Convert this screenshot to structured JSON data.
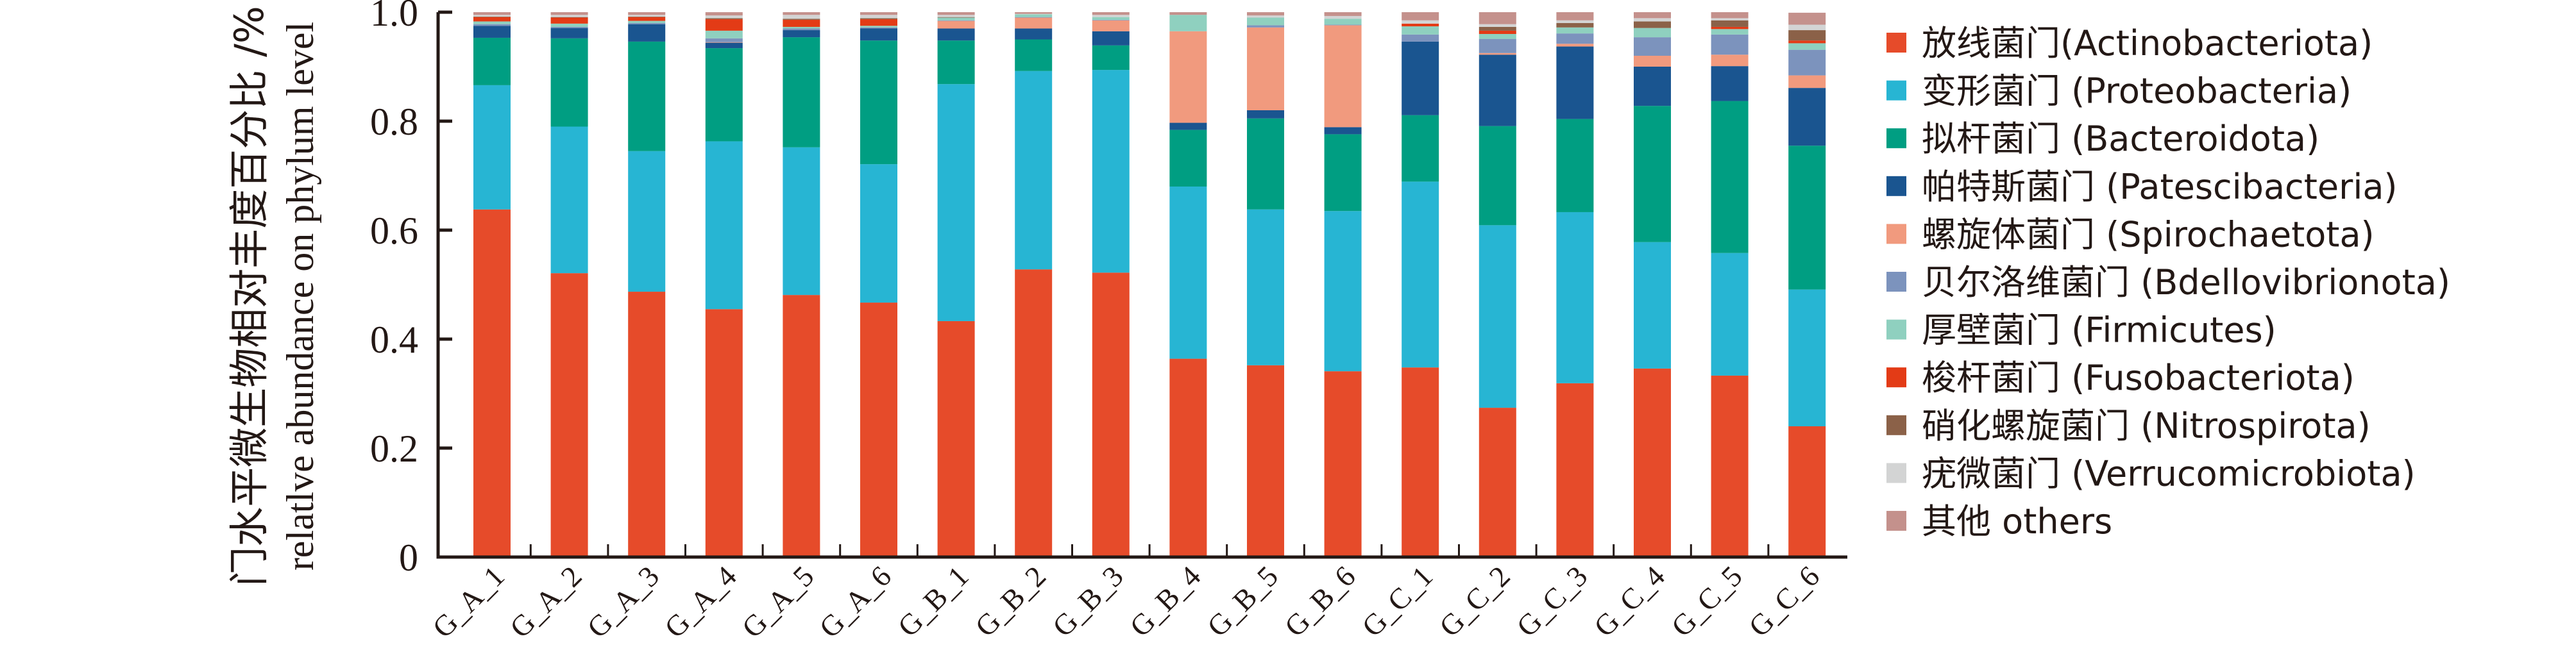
{
  "chart_data": {
    "type": "bar",
    "stacked": true,
    "title": "",
    "ylabel_cn": "门水平微生物相对丰度百分比 /%",
    "ylabel_en": "relatlve abundance on phylum level",
    "xlabel": "",
    "ylim": [
      0,
      1.0
    ],
    "yticks": [
      0,
      0.2,
      0.4,
      0.6,
      0.8,
      1.0
    ],
    "ytick_labels": [
      "0",
      "0.2",
      "0.4",
      "0.6",
      "0.8",
      "1.0"
    ],
    "legend_position": "right",
    "categories": [
      "G_A_1",
      "G_A_2",
      "G_A_3",
      "G_A_4",
      "G_A_5",
      "G_A_6",
      "G_B_1",
      "G_B_2",
      "G_B_3",
      "G_B_4",
      "G_B_5",
      "G_B_6",
      "G_C_1",
      "G_C_2",
      "G_C_3",
      "G_C_4",
      "G_C_5",
      "G_C_6"
    ],
    "series": [
      {
        "name": "放线菌门(Actinobacteriota)",
        "color": "#E64B2A",
        "values": [
          0.638,
          0.521,
          0.487,
          0.455,
          0.481,
          0.467,
          0.433,
          0.528,
          0.522,
          0.364,
          0.352,
          0.341,
          0.348,
          0.274,
          0.319,
          0.346,
          0.333,
          0.24
        ]
      },
      {
        "name": "变形菌门 (Proteobacteria)",
        "color": "#27B5D3",
        "values": [
          0.228,
          0.269,
          0.258,
          0.308,
          0.271,
          0.254,
          0.435,
          0.364,
          0.372,
          0.316,
          0.286,
          0.294,
          0.341,
          0.335,
          0.314,
          0.232,
          0.225,
          0.251
        ]
      },
      {
        "name": "拟杆菌门 (Bacteroidota)",
        "color": "#009E82",
        "values": [
          0.087,
          0.162,
          0.201,
          0.171,
          0.202,
          0.227,
          0.08,
          0.058,
          0.045,
          0.104,
          0.167,
          0.141,
          0.122,
          0.182,
          0.171,
          0.25,
          0.279,
          0.264
        ]
      },
      {
        "name": "帕特斯菌门 (Patescibacteria)",
        "color": "#1A5590",
        "values": [
          0.022,
          0.019,
          0.032,
          0.01,
          0.013,
          0.022,
          0.022,
          0.02,
          0.026,
          0.013,
          0.015,
          0.013,
          0.135,
          0.131,
          0.133,
          0.072,
          0.064,
          0.106
        ]
      },
      {
        "name": "螺旋体菌门 (Spirochaetota)",
        "color": "#F19A7E",
        "values": [
          0.0,
          0.0,
          0.0,
          0.001,
          0.0,
          0.0,
          0.014,
          0.02,
          0.02,
          0.168,
          0.152,
          0.187,
          0.0,
          0.003,
          0.005,
          0.02,
          0.021,
          0.023
        ]
      },
      {
        "name": "贝尔洛维菌门 (Bdellovibrionota)",
        "color": "#7C93BD",
        "values": [
          0.003,
          0.002,
          0.002,
          0.007,
          0.003,
          0.002,
          0.001,
          0.001,
          0.001,
          0.0,
          0.004,
          0.001,
          0.013,
          0.026,
          0.019,
          0.034,
          0.037,
          0.047
        ]
      },
      {
        "name": "厚壁菌门 (Firmicutes)",
        "color": "#8FD0BF",
        "values": [
          0.005,
          0.006,
          0.004,
          0.014,
          0.003,
          0.003,
          0.005,
          0.005,
          0.005,
          0.03,
          0.014,
          0.011,
          0.015,
          0.009,
          0.011,
          0.017,
          0.01,
          0.012
        ]
      },
      {
        "name": "梭杆菌门 (Fusobacteriota)",
        "color": "#E33B16",
        "values": [
          0.008,
          0.011,
          0.007,
          0.021,
          0.013,
          0.012,
          0.0,
          0.0,
          0.0,
          0.0,
          0.0,
          0.0,
          0.005,
          0.006,
          0.0,
          0.0,
          0.004,
          0.005
        ]
      },
      {
        "name": "硝化螺旋菌门 (Nitrospirota)",
        "color": "#8B6148",
        "values": [
          0.001,
          0.001,
          0.001,
          0.002,
          0.002,
          0.002,
          0.001,
          0.0,
          0.0,
          0.0,
          0.0,
          0.0,
          0.0,
          0.007,
          0.008,
          0.012,
          0.012,
          0.019
        ]
      },
      {
        "name": "疣微菌门 (Verrucomicrobiota)",
        "color": "#D3D4D4",
        "values": [
          0.003,
          0.004,
          0.003,
          0.005,
          0.007,
          0.006,
          0.004,
          0.001,
          0.004,
          0.0,
          0.004,
          0.005,
          0.006,
          0.005,
          0.005,
          0.006,
          0.004,
          0.01
        ]
      },
      {
        "name": "其他 others",
        "color": "#C4918C",
        "values": [
          0.005,
          0.005,
          0.005,
          0.006,
          0.005,
          0.005,
          0.005,
          0.003,
          0.005,
          0.005,
          0.006,
          0.007,
          0.015,
          0.022,
          0.015,
          0.011,
          0.011,
          0.022
        ]
      }
    ]
  },
  "axis_colors": {
    "axis": "#231815",
    "text": "#231815"
  }
}
